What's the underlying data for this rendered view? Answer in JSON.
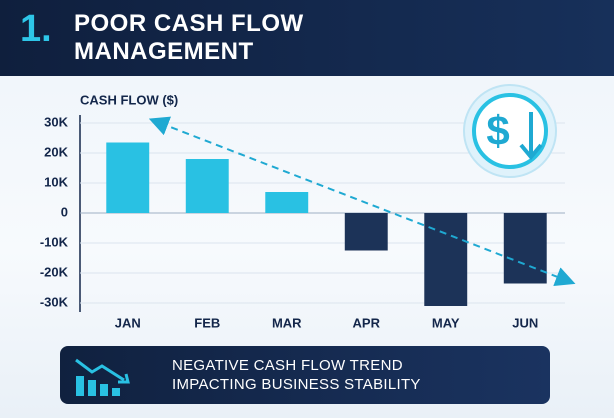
{
  "header": {
    "number": "1.",
    "title": "POOR CASH FLOW MANAGEMENT"
  },
  "chart_data": {
    "type": "bar",
    "y_label": "CASH FLOW ($)",
    "categories": [
      "JAN",
      "FEB",
      "MAR",
      "APR",
      "MAY",
      "JUN"
    ],
    "values": [
      23500,
      18000,
      7000,
      -12500,
      -31000,
      -23500
    ],
    "positive_color": "#29c1e3",
    "negative_color": "#1c3358",
    "ylim": [
      -32000,
      32000
    ],
    "yticks": [
      {
        "value": 30000,
        "label": "30K"
      },
      {
        "value": 20000,
        "label": "20K"
      },
      {
        "value": 10000,
        "label": "10K"
      },
      0,
      {
        "value": -10000,
        "label": "-10K"
      },
      {
        "value": -20000,
        "label": "-20K"
      },
      {
        "value": -30000,
        "label": "-30K"
      }
    ],
    "grid": true
  },
  "footer": {
    "lines": [
      "NEGATIVE CASH FLOW TREND",
      "IMPACTING BUSINESS STABILITY"
    ]
  }
}
